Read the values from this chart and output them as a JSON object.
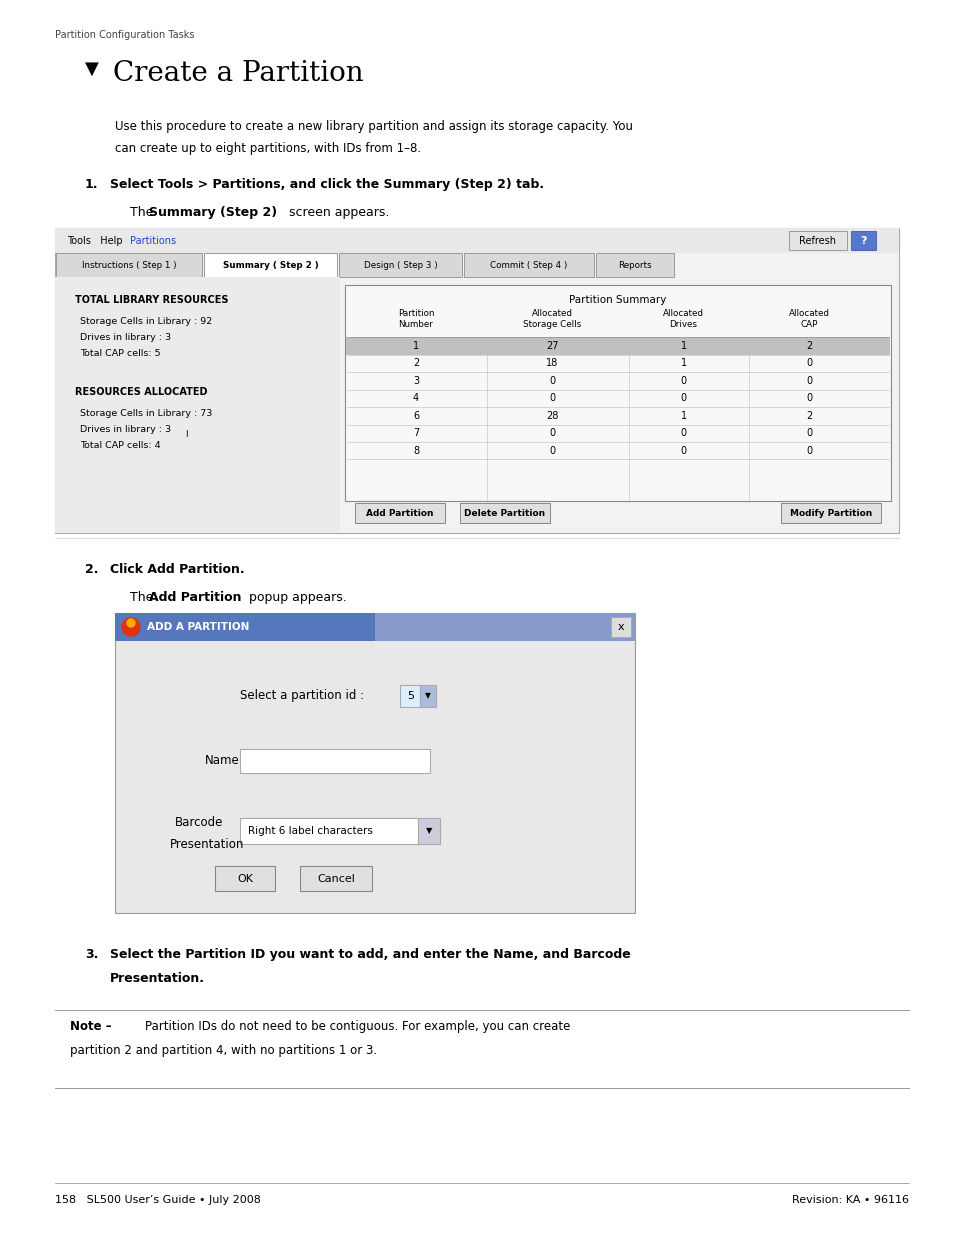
{
  "page_width": 9.54,
  "page_height": 12.35,
  "dpi": 100,
  "bg_color": "#ffffff",
  "header_text": "Partition Configuration Tasks",
  "footer_left": "158   SL500 User’s Guide • July 2008",
  "footer_right": "Revision: KA • 96116"
}
